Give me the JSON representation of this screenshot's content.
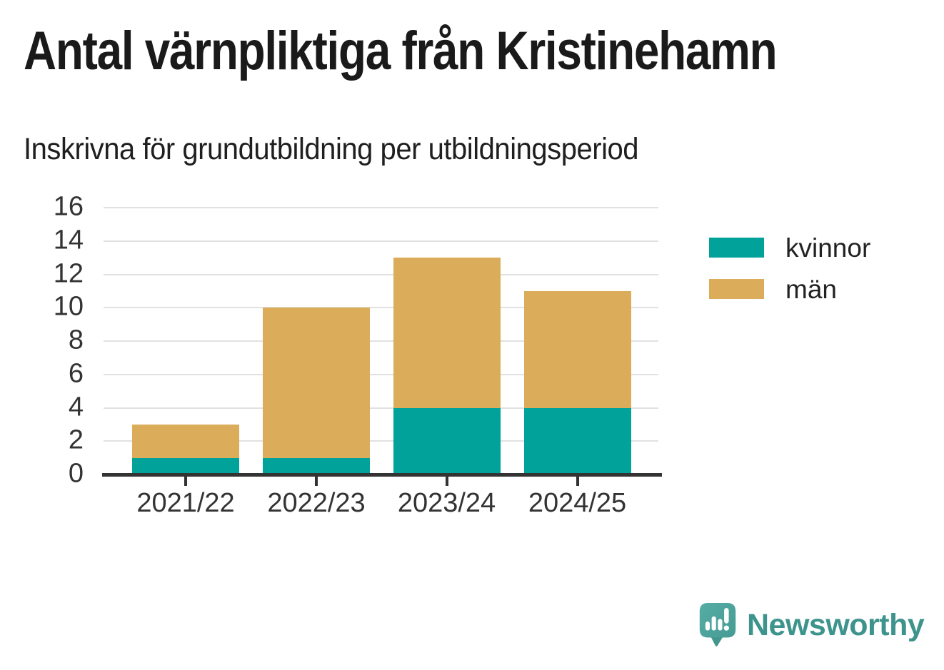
{
  "header": {
    "title": "Antal värnpliktiga från Kristinehamn",
    "subtitle": "Inskrivna för grundutbildning per utbildningsperiod"
  },
  "chart_data": {
    "type": "bar",
    "stacked": true,
    "title": "Antal värnpliktiga från Kristinehamn",
    "subtitle": "Inskrivna för grundutbildning per utbildningsperiod",
    "xlabel": "",
    "ylabel": "",
    "categories": [
      "2021/22",
      "2022/23",
      "2023/24",
      "2024/25"
    ],
    "series": [
      {
        "name": "kvinnor",
        "color": "#00a29a",
        "values": [
          1,
          1,
          4,
          4
        ]
      },
      {
        "name": "män",
        "color": "#dbad5a",
        "values": [
          2,
          9,
          9,
          7
        ]
      }
    ],
    "stack_totals": [
      3,
      10,
      13,
      11
    ],
    "ylim": [
      0,
      16
    ],
    "yticks": [
      0,
      2,
      4,
      6,
      8,
      10,
      12,
      14,
      16
    ],
    "grid": true,
    "legend_position": "right"
  },
  "legend": {
    "items": [
      {
        "label": "kvinnor",
        "color": "#00a29a"
      },
      {
        "label": "män",
        "color": "#dbad5a"
      }
    ]
  },
  "footer": {
    "brand": "Newsworthy",
    "logo_icon": "speech-bubble-bar-chart-icon",
    "brand_color": "#3d948c"
  },
  "colors": {
    "kvinnor": "#00a29a",
    "man": "#dbad5a",
    "axis": "#333333",
    "grid": "#e1e1e1",
    "title_text": "#1a1a1a",
    "brand_teal": "#3d948c",
    "logo_bubble": "#4ba39c",
    "background": "#ffffff"
  }
}
